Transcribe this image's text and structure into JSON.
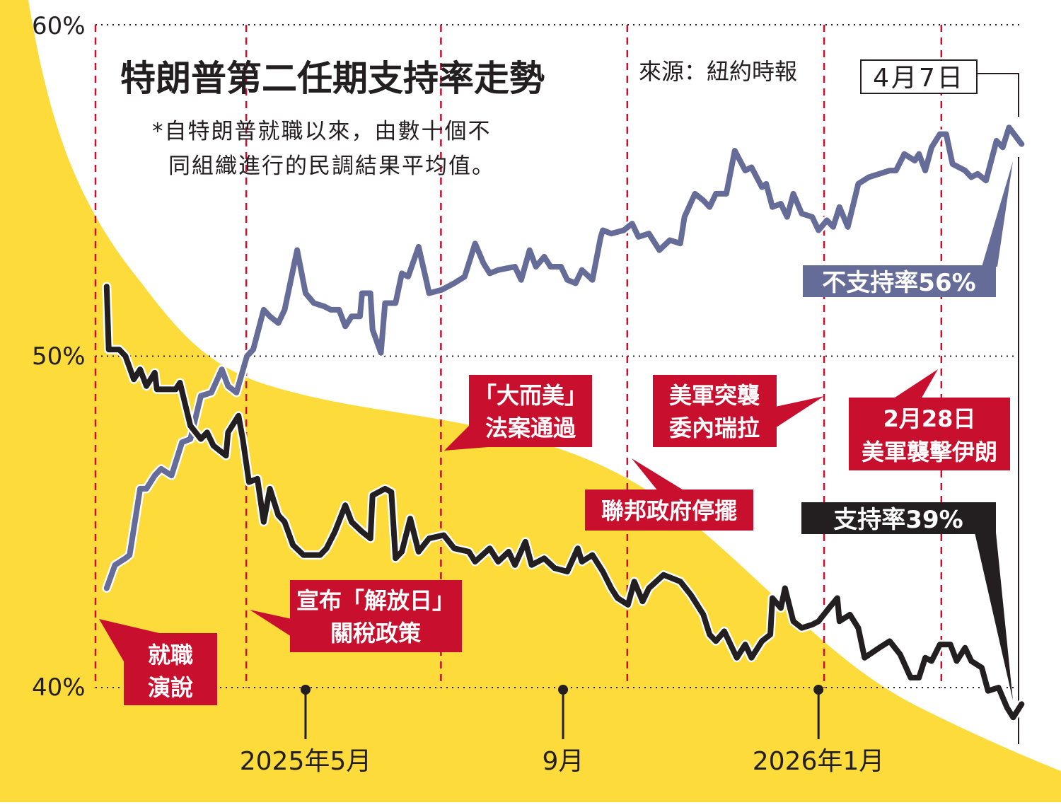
{
  "chart_data": {
    "type": "line",
    "title": "特朗普第二任期支持率走勢",
    "source": "來源：紐約時報",
    "subtitle": [
      "*自特朗普就職以來，由數十個不",
      "同組織進行的民調結果平均值。"
    ],
    "x_unit": "days since 2025-01-20 (inauguration)",
    "xlim": [
      0,
      443
    ],
    "ylim": [
      40,
      60
    ],
    "ylabel": "",
    "xlabel": "",
    "grid": true,
    "y_ticks": [
      {
        "value": 60,
        "label": "60%"
      },
      {
        "value": 50,
        "label": "50%"
      },
      {
        "value": 40,
        "label": "40%"
      }
    ],
    "x_ticks": [
      {
        "value": 101,
        "label": "2025年5月"
      },
      {
        "value": 224,
        "label": "9月"
      },
      {
        "value": 346,
        "label": "2026年1月"
      }
    ],
    "end_date_label": "4月7日",
    "series": [
      {
        "name": "不支持率",
        "end_label": "不支持率56%",
        "color": "#666c98",
        "x": [
          6,
          10,
          15,
          17,
          22,
          25,
          29,
          32,
          37,
          42,
          46,
          51,
          56,
          61,
          64,
          68,
          73,
          76,
          81,
          84,
          88,
          91,
          93,
          97,
          101,
          105,
          110,
          113,
          117,
          120,
          123,
          127,
          128,
          132,
          133,
          137,
          139,
          144,
          147,
          150,
          155,
          159,
          160,
          166,
          172,
          177,
          182,
          186,
          189,
          193,
          201,
          204,
          208,
          211,
          215,
          218,
          223,
          226,
          230,
          233,
          238,
          242,
          243,
          247,
          253,
          257,
          260,
          265,
          270,
          275,
          280,
          282,
          287,
          291,
          294,
          297,
          302,
          306,
          311,
          314,
          319,
          321,
          324,
          328,
          331,
          334,
          338,
          343,
          346,
          350,
          353,
          356,
          360,
          365,
          370,
          375,
          380,
          383,
          387,
          392,
          394,
          397,
          400,
          404,
          407,
          410,
          416,
          419,
          422,
          426,
          431,
          434,
          437,
          443
        ],
        "values": [
          43.0,
          43.7,
          43.9,
          44.0,
          46.0,
          46.0,
          46.4,
          46.6,
          46.4,
          47.4,
          47.5,
          48.8,
          48.9,
          49.6,
          49.1,
          48.9,
          50.0,
          50.2,
          51.4,
          51.2,
          51.0,
          51.4,
          52.0,
          53.2,
          51.9,
          51.6,
          51.5,
          51.4,
          51.4,
          50.9,
          51.2,
          51.2,
          51.9,
          51.9,
          50.8,
          50.1,
          51.6,
          51.6,
          52.5,
          52.4,
          53.3,
          52.2,
          51.9,
          52.0,
          52.2,
          52.4,
          53.4,
          52.8,
          52.5,
          52.6,
          52.7,
          52.3,
          53.2,
          52.7,
          53.0,
          52.7,
          52.7,
          52.3,
          52.2,
          52.6,
          52.3,
          53.6,
          53.8,
          53.7,
          53.8,
          54.0,
          53.6,
          53.7,
          53.2,
          53.5,
          53.4,
          54.2,
          54.9,
          54.7,
          54.5,
          54.9,
          54.9,
          56.2,
          55.6,
          55.7,
          55.1,
          55.2,
          54.5,
          54.6,
          54.2,
          54.9,
          54.3,
          54.2,
          53.8,
          54.1,
          53.9,
          54.5,
          53.9,
          55.2,
          55.4,
          55.5,
          55.6,
          55.6,
          56.1,
          55.9,
          56.1,
          55.6,
          56.3,
          56.7,
          56.7,
          55.8,
          55.6,
          55.4,
          55.5,
          55.3,
          56.5,
          56.3,
          56.9,
          56.4
        ]
      },
      {
        "name": "支持率",
        "end_label": "支持率39%",
        "color": "#231f20",
        "x": [
          6,
          7,
          12,
          15,
          19,
          22,
          25,
          29,
          30,
          39,
          41,
          46,
          51,
          54,
          57,
          63,
          64,
          69,
          71,
          74,
          78,
          81,
          84,
          88,
          91,
          95,
          100,
          108,
          111,
          115,
          120,
          123,
          128,
          132,
          133,
          139,
          142,
          144,
          147,
          151,
          155,
          160,
          167,
          172,
          179,
          182,
          189,
          193,
          198,
          201,
          206,
          209,
          215,
          220,
          226,
          231,
          233,
          238,
          243,
          247,
          250,
          255,
          258,
          262,
          265,
          272,
          280,
          285,
          291,
          294,
          297,
          301,
          304,
          307,
          311,
          314,
          319,
          323,
          324,
          328,
          330,
          334,
          338,
          343,
          346,
          351,
          355,
          356,
          361,
          365,
          368,
          375,
          380,
          385,
          390,
          394,
          397,
          400,
          404,
          409,
          412,
          416,
          419,
          424,
          427,
          432,
          436,
          439,
          443
        ],
        "values": [
          52.1,
          50.2,
          50.2,
          50.0,
          49.3,
          49.6,
          49.1,
          49.5,
          49.0,
          49.0,
          49.2,
          47.9,
          47.5,
          47.7,
          47.3,
          47.0,
          47.7,
          48.2,
          47.5,
          46.2,
          46.3,
          45.0,
          46.0,
          45.2,
          45.0,
          44.3,
          44.0,
          44.0,
          44.2,
          44.7,
          45.5,
          45.0,
          44.7,
          44.5,
          45.8,
          46.0,
          45.9,
          43.9,
          44.1,
          45.1,
          44.1,
          44.5,
          44.6,
          44.2,
          44.1,
          43.8,
          44.2,
          43.8,
          44.1,
          43.7,
          44.4,
          43.7,
          43.9,
          43.6,
          43.5,
          44.2,
          43.8,
          44.0,
          43.5,
          43.0,
          42.7,
          42.5,
          43.2,
          42.6,
          43.0,
          43.4,
          43.2,
          42.8,
          42.2,
          41.6,
          41.4,
          41.7,
          41.3,
          40.9,
          41.3,
          40.9,
          41.4,
          41.6,
          42.7,
          42.4,
          43.0,
          42.0,
          41.8,
          41.9,
          42.0,
          42.4,
          42.7,
          42.0,
          42.2,
          41.8,
          40.9,
          41.2,
          41.4,
          41.0,
          40.3,
          40.3,
          40.9,
          40.8,
          41.3,
          41.3,
          40.8,
          41.2,
          40.8,
          40.6,
          39.9,
          40.0,
          39.4,
          39.1,
          39.5
        ]
      }
    ],
    "annotations": [
      {
        "day": 0,
        "lines": [
          "就職",
          "演說"
        ]
      },
      {
        "day": 72,
        "lines": [
          "宣布「解放日」",
          "關稅政策"
        ]
      },
      {
        "day": 165,
        "lines": [
          "「大而美」",
          "法案通過"
        ]
      },
      {
        "day": 254,
        "lines": [
          "聯邦政府停擺"
        ]
      },
      {
        "day": 348,
        "lines": [
          "美軍突襲",
          "委內瑞拉"
        ]
      },
      {
        "day": 404,
        "lines": [
          "2月28日",
          "美軍襲擊伊朗"
        ]
      }
    ]
  },
  "colors": {
    "yellow": "#fcdb3a",
    "red": "#c8102e",
    "blue": "#666c98",
    "black": "#231f20"
  }
}
